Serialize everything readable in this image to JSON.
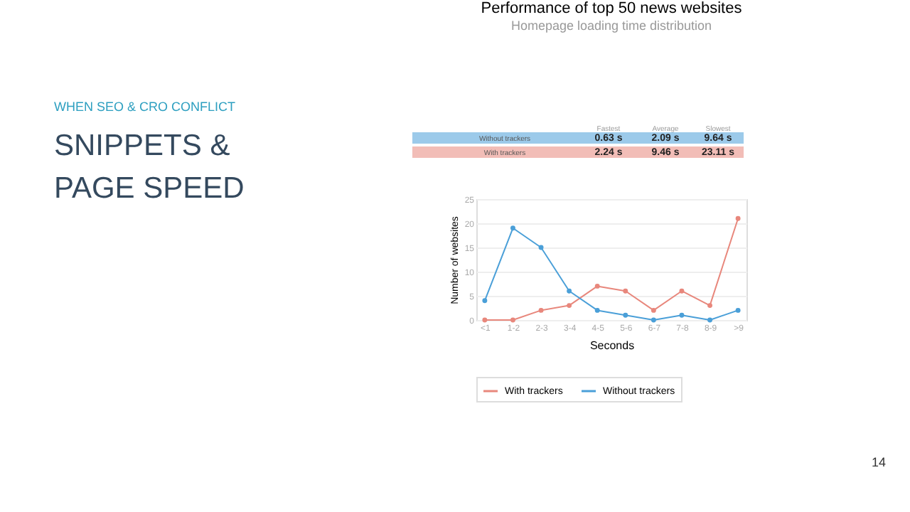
{
  "chart_data": {
    "type": "line",
    "title": "Performance of top 50 news websites",
    "subtitle": "Homepage loading time distribution",
    "xlabel": "Seconds",
    "ylabel": "Number of websites",
    "categories": [
      "<1",
      "1-2",
      "2-3",
      "3-4",
      "4-5",
      "5-6",
      "6-7",
      "7-8",
      "8-9",
      ">9"
    ],
    "series": [
      {
        "name": "With trackers",
        "color": "#e8877c",
        "values": [
          0,
          0,
          2,
          3,
          7,
          6,
          2,
          6,
          3,
          21
        ]
      },
      {
        "name": "Without trackers",
        "color": "#4a9fd8",
        "values": [
          4,
          19,
          15,
          6,
          2,
          1,
          0,
          1,
          0,
          2
        ]
      }
    ],
    "ylim": [
      0,
      25
    ],
    "yticks": [
      0,
      5,
      10,
      15,
      20,
      25
    ],
    "grid": "y",
    "legend": "bottom",
    "marker": "circle",
    "line_style": "solid",
    "annotations": [
      "WHEN SEO & CRO CONFLICT",
      "SNIPPETS & PAGE SPEED",
      "14",
      "Fastest",
      "Average",
      "Slowest",
      "Without trackers",
      "0.63 s",
      "2.09 s",
      "9.64 s",
      "With trackers",
      "2.24 s",
      "9.46 s",
      "23.11 s"
    ]
  }
}
